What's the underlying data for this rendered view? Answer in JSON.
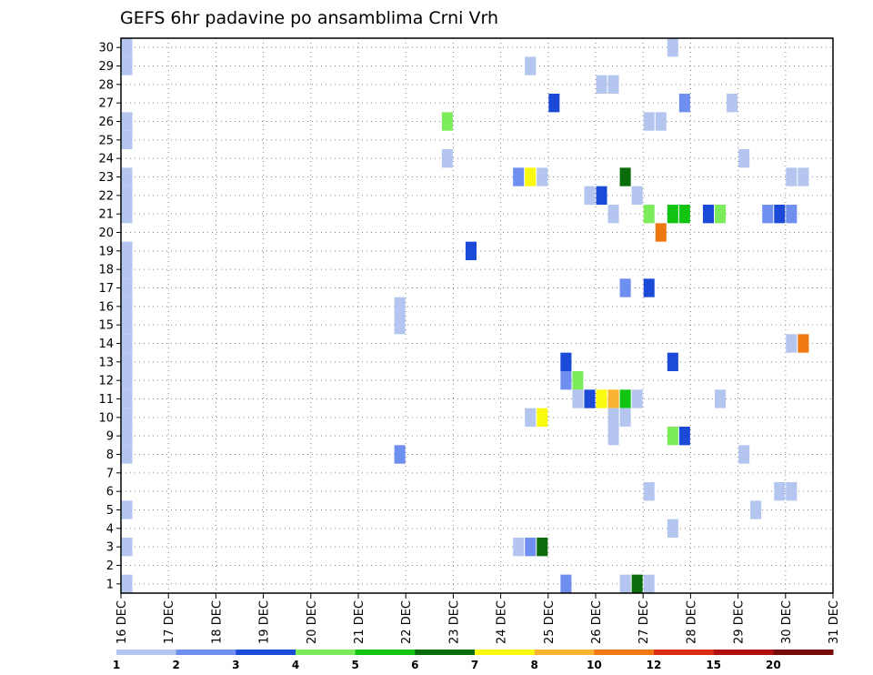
{
  "chart_data": {
    "type": "heatmap",
    "title": "GEFS 6hr padavine po ansamblima Crni Vrh",
    "x_tick_labels": [
      "16 DEC",
      "17 DEC",
      "18 DEC",
      "19 DEC",
      "20 DEC",
      "21 DEC",
      "22 DEC",
      "23 DEC",
      "24 DEC",
      "25 DEC",
      "26 DEC",
      "27 DEC",
      "28 DEC",
      "29 DEC",
      "30 DEC",
      "31 DEC"
    ],
    "y_tick_labels": [
      "1",
      "2",
      "3",
      "4",
      "5",
      "6",
      "7",
      "8",
      "9",
      "10",
      "11",
      "12",
      "13",
      "14",
      "15",
      "16",
      "17",
      "18",
      "19",
      "20",
      "21",
      "22",
      "23",
      "24",
      "25",
      "26",
      "27",
      "28",
      "29",
      "30"
    ],
    "ylim": [
      0.5,
      30.5
    ],
    "grid": true,
    "x_start_day": 16,
    "steps_per_day": 4,
    "n_steps": 60,
    "colorbar": {
      "levels": [
        "1",
        "2",
        "3",
        "4",
        "5",
        "6",
        "7",
        "8",
        "10",
        "12",
        "15",
        "20"
      ],
      "colors": [
        "#b4c6f0",
        "#6e8ef0",
        "#1c4ad8",
        "#7cec5c",
        "#12c412",
        "#0a6c0a",
        "#fafa10",
        "#fab432",
        "#f07812",
        "#dc2c12",
        "#b01010",
        "#780a0a"
      ]
    },
    "cells": [
      {
        "m": 30,
        "s": 1,
        "b": 1
      },
      {
        "m": 29,
        "s": 1,
        "b": 1
      },
      {
        "m": 26,
        "s": 1,
        "b": 1
      },
      {
        "m": 25,
        "s": 1,
        "b": 1
      },
      {
        "m": 23,
        "s": 1,
        "b": 1
      },
      {
        "m": 22,
        "s": 1,
        "b": 1
      },
      {
        "m": 21,
        "s": 1,
        "b": 1
      },
      {
        "m": 19,
        "s": 1,
        "b": 1
      },
      {
        "m": 18,
        "s": 1,
        "b": 1
      },
      {
        "m": 17,
        "s": 1,
        "b": 1
      },
      {
        "m": 16,
        "s": 1,
        "b": 1
      },
      {
        "m": 15,
        "s": 1,
        "b": 1
      },
      {
        "m": 14,
        "s": 1,
        "b": 1
      },
      {
        "m": 13,
        "s": 1,
        "b": 1
      },
      {
        "m": 12,
        "s": 1,
        "b": 1
      },
      {
        "m": 11,
        "s": 1,
        "b": 1
      },
      {
        "m": 10,
        "s": 1,
        "b": 1
      },
      {
        "m": 9,
        "s": 1,
        "b": 1
      },
      {
        "m": 8,
        "s": 1,
        "b": 1
      },
      {
        "m": 5,
        "s": 1,
        "b": 1
      },
      {
        "m": 3,
        "s": 1,
        "b": 1
      },
      {
        "m": 1,
        "s": 1,
        "b": 1
      },
      {
        "m": 16,
        "s": 24,
        "b": 1
      },
      {
        "m": 15,
        "s": 24,
        "b": 1
      },
      {
        "m": 8,
        "s": 24,
        "b": 2
      },
      {
        "m": 26,
        "s": 28,
        "b": 4
      },
      {
        "m": 24,
        "s": 28,
        "b": 1
      },
      {
        "m": 19,
        "s": 30,
        "b": 3
      },
      {
        "m": 29,
        "s": 35,
        "b": 1
      },
      {
        "m": 23,
        "s": 34,
        "b": 2
      },
      {
        "m": 23,
        "s": 35,
        "b": 7
      },
      {
        "m": 23,
        "s": 36,
        "b": 1
      },
      {
        "m": 10,
        "s": 35,
        "b": 1
      },
      {
        "m": 10,
        "s": 36,
        "b": 7
      },
      {
        "m": 3,
        "s": 34,
        "b": 1
      },
      {
        "m": 3,
        "s": 35,
        "b": 2
      },
      {
        "m": 3,
        "s": 36,
        "b": 6
      },
      {
        "m": 27,
        "s": 37,
        "b": 3
      },
      {
        "m": 13,
        "s": 38,
        "b": 3
      },
      {
        "m": 12,
        "s": 38,
        "b": 2
      },
      {
        "m": 1,
        "s": 38,
        "b": 2
      },
      {
        "m": 12,
        "s": 39,
        "b": 4
      },
      {
        "m": 11,
        "s": 39,
        "b": 1
      },
      {
        "m": 11,
        "s": 40,
        "b": 3
      },
      {
        "m": 11,
        "s": 41,
        "b": 7
      },
      {
        "m": 11,
        "s": 42,
        "b": 8
      },
      {
        "m": 11,
        "s": 43,
        "b": 5
      },
      {
        "m": 11,
        "s": 44,
        "b": 1
      },
      {
        "m": 22,
        "s": 40,
        "b": 1
      },
      {
        "m": 22,
        "s": 41,
        "b": 3
      },
      {
        "m": 28,
        "s": 41,
        "b": 1
      },
      {
        "m": 28,
        "s": 42,
        "b": 1
      },
      {
        "m": 21,
        "s": 42,
        "b": 1
      },
      {
        "m": 10,
        "s": 42,
        "b": 1
      },
      {
        "m": 10,
        "s": 43,
        "b": 1
      },
      {
        "m": 9,
        "s": 42,
        "b": 1
      },
      {
        "m": 23,
        "s": 43,
        "b": 6
      },
      {
        "m": 17,
        "s": 43,
        "b": 2
      },
      {
        "m": 1,
        "s": 43,
        "b": 1
      },
      {
        "m": 1,
        "s": 44,
        "b": 6
      },
      {
        "m": 1,
        "s": 45,
        "b": 1
      },
      {
        "m": 22,
        "s": 44,
        "b": 1
      },
      {
        "m": 26,
        "s": 45,
        "b": 1
      },
      {
        "m": 26,
        "s": 46,
        "b": 1
      },
      {
        "m": 21,
        "s": 45,
        "b": 4
      },
      {
        "m": 17,
        "s": 45,
        "b": 3
      },
      {
        "m": 6,
        "s": 45,
        "b": 1
      },
      {
        "m": 20,
        "s": 46,
        "b": 9
      },
      {
        "m": 30,
        "s": 47,
        "b": 1
      },
      {
        "m": 21,
        "s": 47,
        "b": 5
      },
      {
        "m": 21,
        "s": 48,
        "b": 5
      },
      {
        "m": 13,
        "s": 47,
        "b": 3
      },
      {
        "m": 9,
        "s": 47,
        "b": 4
      },
      {
        "m": 4,
        "s": 47,
        "b": 1
      },
      {
        "m": 27,
        "s": 48,
        "b": 2
      },
      {
        "m": 9,
        "s": 48,
        "b": 3
      },
      {
        "m": 21,
        "s": 50,
        "b": 3
      },
      {
        "m": 21,
        "s": 51,
        "b": 4
      },
      {
        "m": 11,
        "s": 51,
        "b": 1
      },
      {
        "m": 27,
        "s": 52,
        "b": 1
      },
      {
        "m": 24,
        "s": 53,
        "b": 1
      },
      {
        "m": 8,
        "s": 53,
        "b": 1
      },
      {
        "m": 5,
        "s": 54,
        "b": 1
      },
      {
        "m": 21,
        "s": 55,
        "b": 2
      },
      {
        "m": 21,
        "s": 56,
        "b": 3
      },
      {
        "m": 21,
        "s": 57,
        "b": 2
      },
      {
        "m": 6,
        "s": 56,
        "b": 1
      },
      {
        "m": 6,
        "s": 57,
        "b": 1
      },
      {
        "m": 23,
        "s": 57,
        "b": 1
      },
      {
        "m": 23,
        "s": 58,
        "b": 1
      },
      {
        "m": 14,
        "s": 57,
        "b": 1
      },
      {
        "m": 14,
        "s": 58,
        "b": 9
      }
    ]
  }
}
